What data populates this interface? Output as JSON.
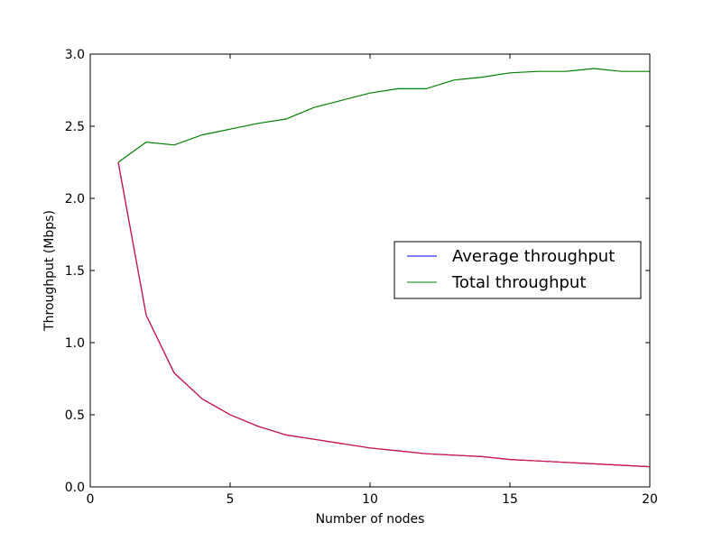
{
  "chart_data": {
    "type": "line",
    "title": "",
    "xlabel": "Number of nodes",
    "ylabel": "Throughput (Mbps)",
    "xlim": [
      0,
      20
    ],
    "ylim": [
      0.0,
      3.0
    ],
    "xticks": [
      0,
      5,
      10,
      15,
      20
    ],
    "xtick_labels": [
      "0",
      "5",
      "10",
      "15",
      "20"
    ],
    "yticks": [
      0.0,
      0.5,
      1.0,
      1.5,
      2.0,
      2.5,
      3.0
    ],
    "ytick_labels": [
      "0.0",
      "0.5",
      "1.0",
      "1.5",
      "2.0",
      "2.5",
      "3.0"
    ],
    "grid": false,
    "legend_position": "center-right",
    "x": [
      1,
      2,
      3,
      4,
      5,
      6,
      7,
      8,
      9,
      10,
      11,
      12,
      13,
      14,
      15,
      16,
      17,
      18,
      19,
      20
    ],
    "series": [
      {
        "name": "Average throughput",
        "color": "#0000ff",
        "values": [
          2.25,
          1.19,
          0.79,
          0.61,
          0.5,
          0.42,
          0.36,
          0.33,
          0.3,
          0.27,
          0.25,
          0.23,
          0.22,
          0.21,
          0.19,
          0.18,
          0.17,
          0.16,
          0.15,
          0.14
        ]
      },
      {
        "name": "Total throughput",
        "color": "#008000",
        "values": [
          2.25,
          2.39,
          2.37,
          2.44,
          2.48,
          2.52,
          2.55,
          2.63,
          2.68,
          2.73,
          2.76,
          2.76,
          2.82,
          2.84,
          2.87,
          2.88,
          2.88,
          2.9,
          2.88,
          2.88
        ]
      }
    ],
    "overlay_color": "#dc143c"
  }
}
